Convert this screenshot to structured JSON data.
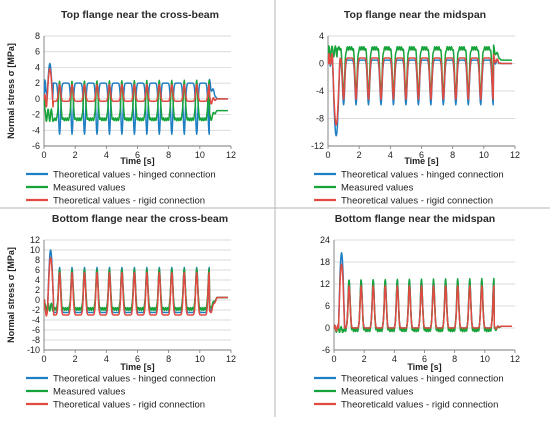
{
  "figure": {
    "colors": {
      "hinged": "#1f7fc3",
      "measured": "#16a33a",
      "rigid": "#e04a40",
      "grid": "#cfcfcf",
      "axis": "#7a7a7a",
      "divider": "#b5b5b5"
    }
  },
  "chart_data": [
    {
      "type": "line",
      "title": "Top flange near the cross-beam",
      "xlabel": "Time [s]",
      "ylabel": "Normal stress σ [MPa]",
      "xlim": [
        0,
        12
      ],
      "ylim": [
        -6,
        8
      ],
      "xticks": [
        "0",
        "2",
        "4",
        "6",
        "8",
        "10",
        "12"
      ],
      "yticks": [
        "-6",
        "-4",
        "-2",
        "0",
        "2",
        "4",
        "6",
        "8"
      ],
      "grid": true,
      "legend_position": "bottom",
      "pattern": {
        "t_start": 0.6,
        "t_end": 10.6,
        "period": 0.8,
        "sign": -1,
        "spike_t": [
          0.2,
          0.55
        ],
        "spike_y": 4.5
      },
      "series": [
        {
          "name": "Theoretical values - hinged connection",
          "color": "#1f7fc3",
          "peak": -4.5,
          "baseline": 2.0,
          "settle": 0
        },
        {
          "name": "Measured values",
          "color": "#16a33a",
          "peak": 2.2,
          "baseline": -2.6,
          "settle": -1.5
        },
        {
          "name": "Theoretical values - rigid connection",
          "color": "#e04a40",
          "peak": 1.8,
          "baseline": -0.3,
          "settle": 0
        }
      ]
    },
    {
      "type": "line",
      "title": "Top flange near the midspan",
      "xlabel": "Time [s]",
      "ylabel": "",
      "xlim": [
        0,
        12
      ],
      "ylim": [
        -12,
        4
      ],
      "xticks": [
        "0",
        "2",
        "4",
        "6",
        "8",
        "10",
        "12"
      ],
      "yticks": [
        "-12",
        "-8",
        "-4",
        "0",
        "4"
      ],
      "grid": true,
      "legend_position": "bottom",
      "pattern": {
        "t_start": 0.6,
        "t_end": 10.6,
        "period": 0.8,
        "sign": -1,
        "spike_t": [
          0.3,
          0.75
        ],
        "spike_y": -10.5
      },
      "series": [
        {
          "name": "Theoretical values - hinged connection",
          "color": "#1f7fc3",
          "peak": -6.0,
          "baseline": 0.5,
          "settle": 0
        },
        {
          "name": "Measured values",
          "color": "#16a33a",
          "peak": -4.5,
          "baseline": 2.2,
          "settle": 0.5
        },
        {
          "name": "Theoretical values - rigid connection",
          "color": "#e04a40",
          "peak": -5.2,
          "baseline": 0.8,
          "settle": 0
        }
      ]
    },
    {
      "type": "line",
      "title": "Bottom flange near the cross-beam",
      "xlabel": "Time [s]",
      "ylabel": "Normal stress σ [MPa]",
      "xlim": [
        0,
        12
      ],
      "ylim": [
        -10,
        12
      ],
      "xticks": [
        "0",
        "2",
        "4",
        "6",
        "8",
        "10",
        "12"
      ],
      "yticks": [
        "-10",
        "-8",
        "-6",
        "-4",
        "-2",
        "0",
        "2",
        "4",
        "6",
        "8",
        "10",
        "12"
      ],
      "grid": true,
      "legend_position": "bottom",
      "pattern": {
        "t_start": 0.6,
        "t_end": 10.6,
        "period": 0.8,
        "sign": 1,
        "spike_t": [
          0.25,
          0.6
        ],
        "spike_y": 10.0
      },
      "series": [
        {
          "name": "Theoretical values - hinged connection",
          "color": "#1f7fc3",
          "peak": 6.5,
          "baseline": -2.5,
          "settle": 0.5
        },
        {
          "name": "Measured values",
          "color": "#16a33a",
          "peak": 6.0,
          "baseline": -1.8,
          "settle": 0.5
        },
        {
          "name": "Theoretical values - rigid connection",
          "color": "#e04a40",
          "peak": 5.5,
          "baseline": -3.0,
          "settle": 0.5
        }
      ]
    },
    {
      "type": "line",
      "title": "Bottom flange near the midspan",
      "xlabel": "Time [s]",
      "ylabel": "",
      "xlim": [
        0,
        12
      ],
      "ylim": [
        -6,
        24
      ],
      "xticks": [
        "0",
        "2",
        "4",
        "6",
        "8",
        "10",
        "12"
      ],
      "yticks": [
        "-6",
        "0",
        "6",
        "12",
        "18",
        "24"
      ],
      "grid": true,
      "legend_position": "bottom",
      "pattern": {
        "t_start": 0.6,
        "t_end": 10.6,
        "period": 0.8,
        "sign": 1,
        "spike_t": [
          0.3,
          0.7
        ],
        "spike_y": 20.5
      },
      "series": [
        {
          "name": "Theoretical values - hinged connection",
          "color": "#1f7fc3",
          "peak": 13.0,
          "baseline": 0.0,
          "settle": 0.5
        },
        {
          "name": "Measured values",
          "color": "#16a33a",
          "peak": 13.0,
          "baseline": -0.5,
          "settle": 0.5
        },
        {
          "name": "Theoreticald values - rigid connection",
          "color": "#e04a40",
          "peak": 11.5,
          "baseline": 0.0,
          "settle": 0.5
        }
      ]
    }
  ]
}
